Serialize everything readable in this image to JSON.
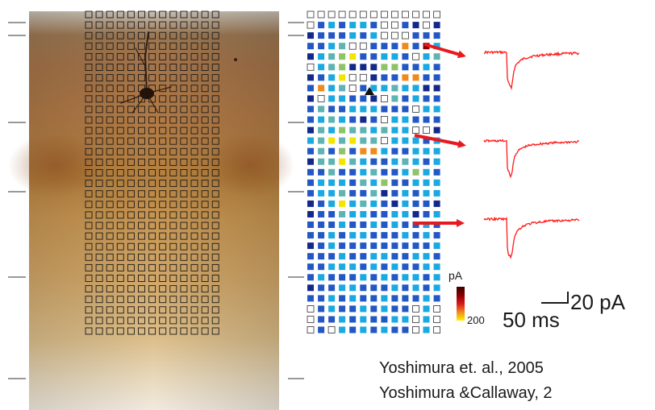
{
  "figure": {
    "colors": {
      "trace": "#ff1a1a",
      "arrow": "#e8191e",
      "layer_tick": "#333333",
      "grid_outline": "#1a1a1a",
      "map_dark": "#14288a",
      "map_mid": "#2357c4",
      "map_cyan": "#1aa9e0",
      "map_teal": "#5fb3b3",
      "map_green": "#8fc36a",
      "map_yellow": "#f2e600",
      "map_orange": "#f08a1c",
      "map_red": "#d7191c"
    },
    "colorbar": {
      "unit_label": "pA",
      "tick_label": "200"
    },
    "scale_bar": {
      "amplitude_label": "20 pA",
      "time_label": "50 ms"
    },
    "citations": [
      "Yoshimura et. al., 2005",
      "Yoshimura &Callaway, 2"
    ],
    "traces_count": 3,
    "map_levels": [
      "0000000000000",
      "0232332002101",
      "1222323000222",
      "2234002227293",
      "1345622332034",
      "0345111552232",
      "1236001227722",
      "2734023343311",
      "1033221042322",
      "2422333222033",
      "2343212033222",
      "1435443433001",
      "3464644033323",
      "2425277322333",
      "1446432234323",
      "2242234223532",
      "2333243522333",
      "2334224123233",
      "1236343213221",
      "1224332233123",
      "2223223232232",
      "2232332223232",
      "1232222222223",
      "2223223322332",
      "2233323232233",
      "2322232323323",
      "1223322232323",
      "2232322322232",
      "0232232322030",
      "0223232233030",
      "0203232322030"
    ]
  }
}
